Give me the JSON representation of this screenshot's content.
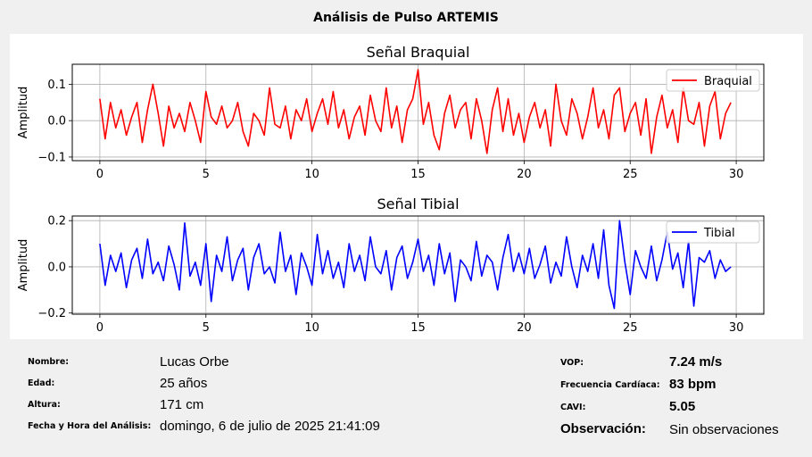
{
  "window": {
    "title": "Análisis de Pulso ARTEMIS"
  },
  "chart_data": [
    {
      "type": "line",
      "title": "Señal Braquial",
      "xlabel": "",
      "ylabel": "Amplitud",
      "xlim": [
        -1.3,
        31.3
      ],
      "ylim": [
        -0.11,
        0.155
      ],
      "xticks": [
        0,
        5,
        10,
        15,
        20,
        25,
        30
      ],
      "yticks": [
        -0.1,
        0.0,
        0.1
      ],
      "ytick_labels": [
        "−0.1",
        "0.0",
        "0.1"
      ],
      "grid": true,
      "legend_position": "top-right",
      "series": [
        {
          "name": "Braquial",
          "color": "#ff0000",
          "x": [
            0,
            0.25,
            0.5,
            0.75,
            1,
            1.25,
            1.5,
            1.75,
            2,
            2.25,
            2.5,
            2.75,
            3,
            3.25,
            3.5,
            3.75,
            4,
            4.25,
            4.5,
            4.75,
            5,
            5.25,
            5.5,
            5.75,
            6,
            6.25,
            6.5,
            6.75,
            7,
            7.25,
            7.5,
            7.75,
            8,
            8.25,
            8.5,
            8.75,
            9,
            9.25,
            9.5,
            9.75,
            10,
            10.25,
            10.5,
            10.75,
            11,
            11.25,
            11.5,
            11.75,
            12,
            12.25,
            12.5,
            12.75,
            13,
            13.25,
            13.5,
            13.75,
            14,
            14.25,
            14.5,
            14.75,
            15,
            15.25,
            15.5,
            15.75,
            16,
            16.25,
            16.5,
            16.75,
            17,
            17.25,
            17.5,
            17.75,
            18,
            18.25,
            18.5,
            18.75,
            19,
            19.25,
            19.5,
            19.75,
            20,
            20.25,
            20.5,
            20.75,
            21,
            21.25,
            21.5,
            21.75,
            22,
            22.25,
            22.5,
            22.75,
            23,
            23.25,
            23.5,
            23.75,
            24,
            24.25,
            24.5,
            24.75,
            25,
            25.25,
            25.5,
            25.75,
            26,
            26.25,
            26.5,
            26.75,
            27,
            27.25,
            27.5,
            27.75,
            28,
            28.25,
            28.5,
            28.75,
            29,
            29.25,
            29.5,
            29.75
          ],
          "y": [
            0.06,
            -0.05,
            0.05,
            -0.02,
            0.03,
            -0.04,
            0.01,
            0.05,
            -0.06,
            0.03,
            0.1,
            0.02,
            -0.07,
            0.04,
            -0.02,
            0.02,
            -0.03,
            0.05,
            0.0,
            -0.06,
            0.08,
            0.01,
            -0.01,
            0.04,
            -0.02,
            0.0,
            0.05,
            -0.03,
            -0.07,
            0.02,
            0.0,
            -0.04,
            0.09,
            -0.01,
            -0.02,
            0.04,
            -0.05,
            0.03,
            0.0,
            0.06,
            -0.03,
            0.02,
            0.06,
            -0.01,
            0.08,
            -0.02,
            0.03,
            -0.05,
            0.01,
            0.04,
            -0.04,
            0.07,
            0.0,
            -0.03,
            0.09,
            -0.02,
            0.04,
            -0.06,
            0.03,
            0.06,
            0.14,
            -0.01,
            0.05,
            -0.04,
            -0.08,
            0.02,
            0.07,
            -0.02,
            0.03,
            0.05,
            -0.05,
            0.06,
            0.0,
            -0.09,
            0.03,
            0.09,
            -0.03,
            0.06,
            -0.04,
            0.02,
            -0.06,
            0.01,
            0.05,
            -0.02,
            0.03,
            -0.07,
            0.1,
            0.0,
            -0.04,
            0.06,
            0.02,
            -0.05,
            0.01,
            0.09,
            -0.02,
            0.03,
            -0.05,
            0.07,
            0.09,
            -0.03,
            0.02,
            0.05,
            -0.04,
            0.06,
            -0.09,
            0.01,
            0.07,
            -0.02,
            0.03,
            -0.06,
            0.09,
            0.0,
            -0.01,
            0.05,
            -0.07,
            0.04,
            0.08,
            -0.05,
            0.02,
            0.05
          ]
        }
      ]
    },
    {
      "type": "line",
      "title": "Señal Tibial",
      "xlabel": "",
      "ylabel": "Amplitud",
      "xlim": [
        -1.3,
        31.3
      ],
      "ylim": [
        -0.205,
        0.22
      ],
      "xticks": [
        0,
        5,
        10,
        15,
        20,
        25,
        30
      ],
      "yticks": [
        -0.2,
        0.0,
        0.2
      ],
      "ytick_labels": [
        "−0.2",
        "0.0",
        "0.2"
      ],
      "grid": true,
      "legend_position": "top-right",
      "series": [
        {
          "name": "Tibial",
          "color": "#0000ff",
          "x": [
            0,
            0.25,
            0.5,
            0.75,
            1,
            1.25,
            1.5,
            1.75,
            2,
            2.25,
            2.5,
            2.75,
            3,
            3.25,
            3.5,
            3.75,
            4,
            4.25,
            4.5,
            4.75,
            5,
            5.25,
            5.5,
            5.75,
            6,
            6.25,
            6.5,
            6.75,
            7,
            7.25,
            7.5,
            7.75,
            8,
            8.25,
            8.5,
            8.75,
            9,
            9.25,
            9.5,
            9.75,
            10,
            10.25,
            10.5,
            10.75,
            11,
            11.25,
            11.5,
            11.75,
            12,
            12.25,
            12.5,
            12.75,
            13,
            13.25,
            13.5,
            13.75,
            14,
            14.25,
            14.5,
            14.75,
            15,
            15.25,
            15.5,
            15.75,
            16,
            16.25,
            16.5,
            16.75,
            17,
            17.25,
            17.5,
            17.75,
            18,
            18.25,
            18.5,
            18.75,
            19,
            19.25,
            19.5,
            19.75,
            20,
            20.25,
            20.5,
            20.75,
            21,
            21.25,
            21.5,
            21.75,
            22,
            22.25,
            22.5,
            22.75,
            23,
            23.25,
            23.5,
            23.75,
            24,
            24.25,
            24.5,
            24.75,
            25,
            25.25,
            25.5,
            25.75,
            26,
            26.25,
            26.5,
            26.75,
            27,
            27.25,
            27.5,
            27.75,
            28,
            28.25,
            28.5,
            28.75,
            29,
            29.25,
            29.5,
            29.75
          ],
          "y": [
            0.1,
            -0.08,
            0.05,
            -0.02,
            0.06,
            -0.09,
            0.03,
            0.08,
            -0.05,
            0.12,
            -0.03,
            0.02,
            -0.06,
            0.09,
            0.01,
            -0.1,
            0.19,
            -0.04,
            0.02,
            -0.08,
            0.1,
            -0.15,
            0.05,
            -0.02,
            0.13,
            -0.06,
            0.03,
            0.08,
            -0.1,
            0.04,
            0.1,
            -0.03,
            0.0,
            -0.07,
            0.15,
            -0.02,
            0.05,
            -0.12,
            0.06,
            0.0,
            -0.08,
            0.14,
            -0.03,
            0.07,
            -0.05,
            0.02,
            -0.09,
            0.1,
            -0.02,
            0.05,
            -0.06,
            0.13,
            0.0,
            -0.03,
            0.07,
            -0.1,
            0.04,
            0.09,
            -0.05,
            0.02,
            0.12,
            -0.02,
            0.05,
            -0.08,
            0.1,
            -0.03,
            0.06,
            -0.15,
            0.03,
            0.0,
            -0.06,
            0.11,
            -0.04,
            0.05,
            0.02,
            -0.1,
            0.04,
            0.14,
            -0.02,
            0.06,
            -0.03,
            0.08,
            -0.05,
            0.01,
            0.09,
            -0.07,
            0.02,
            -0.04,
            0.13,
            0.0,
            -0.09,
            0.05,
            -0.02,
            0.1,
            -0.05,
            0.16,
            -0.08,
            -0.18,
            0.2,
            0.02,
            -0.12,
            0.07,
            0.0,
            -0.05,
            0.09,
            -0.06,
            0.03,
            0.15,
            -0.01,
            0.06,
            -0.09,
            0.11,
            -0.17,
            0.04,
            0.02,
            0.07,
            -0.05,
            0.03,
            -0.02,
            0.0
          ]
        }
      ]
    }
  ],
  "patient": {
    "name_label": "Nombre:",
    "name_value": "Lucas Orbe",
    "age_label": "Edad:",
    "age_value": "25 años",
    "height_label": "Altura:",
    "height_value": "171 cm",
    "date_label": "Fecha y Hora del Análisis:",
    "date_value": "domingo, 6 de julio de 2025 21:41:09"
  },
  "results": {
    "vop_label": "VOP:",
    "vop_value": "7.24 m/s",
    "hr_label": "Frecuencia Cardíaca:",
    "hr_value": "83 bpm",
    "cavi_label": "CAVI:",
    "cavi_value": "5.05",
    "obs_label": "Observación:",
    "obs_value": "Sin observaciones"
  }
}
